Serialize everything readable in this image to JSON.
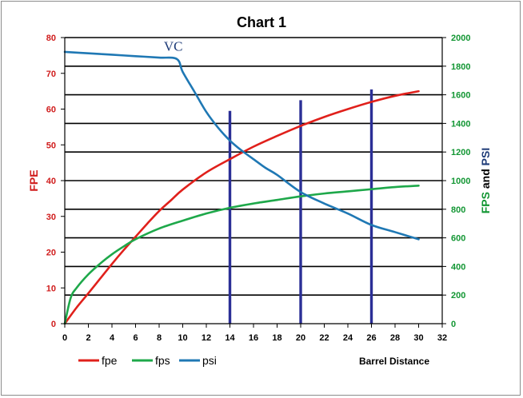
{
  "chart_data": {
    "type": "line",
    "title": "Chart 1",
    "xlabel": "Barrel Distance",
    "ylabel_left": "FPE",
    "ylabel_right": [
      "FPS",
      " and ",
      "PSI"
    ],
    "xlim": [
      0,
      32
    ],
    "ylim_left": [
      0,
      80
    ],
    "ylim_right": [
      0,
      2000
    ],
    "x_ticks": [
      0,
      2,
      4,
      6,
      8,
      10,
      12,
      14,
      16,
      18,
      20,
      22,
      24,
      26,
      28,
      30,
      32
    ],
    "y_ticks_left": [
      0,
      10,
      20,
      30,
      40,
      50,
      60,
      70,
      80
    ],
    "y_ticks_right": [
      0,
      200,
      400,
      600,
      800,
      1000,
      1200,
      1400,
      1600,
      1800,
      2000
    ],
    "grid": "horizontal",
    "legend_position": "bottom-left",
    "colors": {
      "fpe": "#e0201b",
      "fps": "#1ea84a",
      "psi": "#1f78b4",
      "left_axis": "#d01c1c",
      "right_axis": "#129633",
      "markers": "#2b2f96",
      "grid": "#000000"
    },
    "series": [
      {
        "name": "fpe",
        "axis": "left",
        "x": [
          0,
          1,
          2,
          3,
          4,
          5,
          6,
          7,
          8,
          9,
          10,
          12,
          14,
          16,
          18,
          20,
          22,
          24,
          26,
          28,
          30
        ],
        "y": [
          0,
          4.5,
          8.5,
          12.6,
          16.7,
          20.6,
          24.3,
          28.0,
          31.5,
          34.5,
          37.5,
          42.3,
          46.0,
          49.5,
          52.5,
          55.3,
          57.8,
          60.0,
          62.0,
          63.7,
          65.0
        ]
      },
      {
        "name": "fps",
        "axis": "right",
        "x": [
          0,
          0.5,
          1,
          2,
          3,
          4,
          5,
          6,
          8,
          10,
          12,
          14,
          16,
          18,
          20,
          22,
          24,
          26,
          28,
          30
        ],
        "y": [
          0,
          180,
          250,
          345,
          420,
          485,
          540,
          590,
          665,
          720,
          770,
          810,
          840,
          865,
          890,
          910,
          925,
          940,
          955,
          965
        ]
      },
      {
        "name": "psi",
        "axis": "right",
        "x": [
          0,
          2,
          4,
          6,
          8,
          9.5,
          10,
          11,
          12,
          13,
          14,
          15,
          16,
          17,
          18,
          20,
          22,
          24,
          26,
          28,
          30
        ],
        "y": [
          1900,
          1890,
          1880,
          1870,
          1860,
          1850,
          1760,
          1620,
          1480,
          1370,
          1280,
          1210,
          1150,
          1090,
          1040,
          920,
          840,
          770,
          690,
          640,
          590
        ]
      }
    ],
    "markers": [
      {
        "x": 14,
        "y_top": 59.5
      },
      {
        "x": 20,
        "y_top": 62.5
      },
      {
        "x": 26,
        "y_top": 65.5
      }
    ],
    "annotations": [
      {
        "text": "VC",
        "x": 9.2,
        "y": 76.3
      }
    ]
  }
}
